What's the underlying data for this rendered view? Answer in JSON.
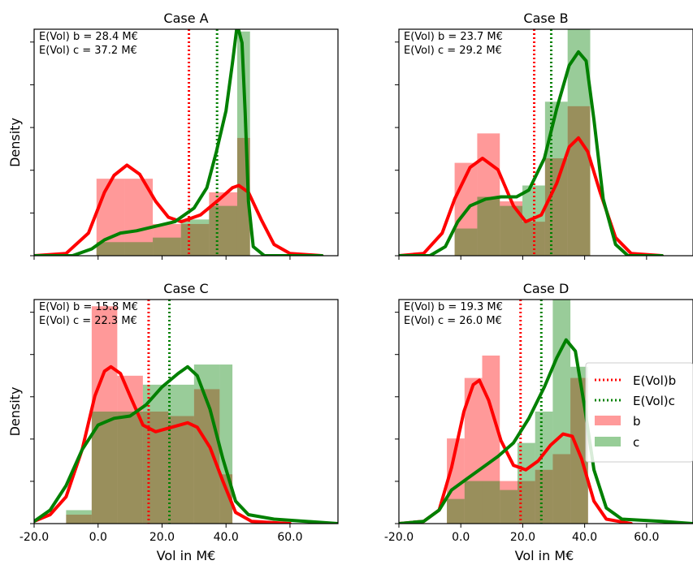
{
  "colors": {
    "b": "#ff0000",
    "c": "#008000",
    "b_fill": "#ff9a9a",
    "c_fill": "#97cd97",
    "overlap": "#998a4e"
  },
  "legend": {
    "placement": "center-right (panel D)",
    "items": [
      {
        "label": "E(Vol)b",
        "style": "dotted-line",
        "color": "#ff0000"
      },
      {
        "label": "E(Vol)c",
        "style": "dotted-line",
        "color": "#008000"
      },
      {
        "label": "b",
        "style": "patch",
        "color": "#ff9a9a"
      },
      {
        "label": "c",
        "style": "patch",
        "color": "#97cd97"
      }
    ]
  },
  "chart_data": [
    {
      "panel": "A",
      "type": "histogram+kde",
      "title": "Case A",
      "ylabel": "Density",
      "xlabel": "",
      "xlim": [
        -20,
        75
      ],
      "ylim": [
        0,
        1.0
      ],
      "xticks": [
        -20,
        0,
        20,
        40,
        60
      ],
      "xtick_labels": [],
      "annotations": [
        "E(Vol) b = 28.4 M€",
        "E(Vol) c = 37.2 M€"
      ],
      "expected": {
        "b": 28.4,
        "c": 37.2
      },
      "bins": [
        -0.5,
        8.3,
        17.1,
        25.9,
        34.7,
        43.5,
        47.5
      ],
      "hist_b": [
        0.34,
        0.34,
        0.14,
        0.14,
        0.28,
        0.52
      ],
      "hist_c": [
        0.06,
        0.06,
        0.08,
        0.16,
        0.22,
        0.99
      ],
      "kde_b": [
        [
          -20,
          0
        ],
        [
          -10,
          0.01
        ],
        [
          -3,
          0.1
        ],
        [
          2,
          0.28
        ],
        [
          5,
          0.355
        ],
        [
          9,
          0.4
        ],
        [
          13,
          0.36
        ],
        [
          18,
          0.24
        ],
        [
          22,
          0.17
        ],
        [
          26,
          0.15
        ],
        [
          32,
          0.18
        ],
        [
          38,
          0.25
        ],
        [
          42,
          0.3
        ],
        [
          44,
          0.31
        ],
        [
          47,
          0.28
        ],
        [
          51,
          0.16
        ],
        [
          55,
          0.05
        ],
        [
          60,
          0.01
        ],
        [
          70,
          0
        ]
      ],
      "kde_c": [
        [
          -20,
          0
        ],
        [
          -8,
          0
        ],
        [
          -2,
          0.03
        ],
        [
          2,
          0.07
        ],
        [
          7,
          0.1
        ],
        [
          12,
          0.11
        ],
        [
          18,
          0.13
        ],
        [
          24,
          0.15
        ],
        [
          30,
          0.21
        ],
        [
          34,
          0.3
        ],
        [
          37,
          0.46
        ],
        [
          40,
          0.64
        ],
        [
          42,
          0.85
        ],
        [
          43.5,
          1.02
        ],
        [
          45,
          0.94
        ],
        [
          46,
          0.63
        ],
        [
          47,
          0.24
        ],
        [
          48.5,
          0.04
        ],
        [
          52,
          0
        ],
        [
          70,
          0
        ]
      ]
    },
    {
      "panel": "B",
      "type": "histogram+kde",
      "title": "Case B",
      "ylabel": "",
      "xlabel": "",
      "xlim": [
        -20,
        75
      ],
      "ylim": [
        0,
        1.0
      ],
      "xticks": [
        -20,
        0,
        20,
        40,
        60
      ],
      "xtick_labels": [],
      "annotations": [
        "E(Vol) b = 23.7 M€",
        "E(Vol) c = 29.2 M€"
      ],
      "expected": {
        "b": 23.7,
        "c": 29.2
      },
      "bins": [
        -2,
        5.3,
        12.6,
        19.9,
        27.2,
        34.5,
        41.8
      ],
      "hist_b": [
        0.41,
        0.54,
        0.24,
        0.15,
        0.43,
        0.66
      ],
      "hist_c": [
        0.12,
        0.26,
        0.22,
        0.31,
        0.68,
        1.0
      ],
      "kde_b": [
        [
          -20,
          0
        ],
        [
          -12,
          0.01
        ],
        [
          -6,
          0.1
        ],
        [
          -2,
          0.25
        ],
        [
          3,
          0.39
        ],
        [
          7,
          0.43
        ],
        [
          12,
          0.38
        ],
        [
          17,
          0.22
        ],
        [
          21,
          0.15
        ],
        [
          26,
          0.18
        ],
        [
          31,
          0.32
        ],
        [
          35,
          0.48
        ],
        [
          38,
          0.52
        ],
        [
          41,
          0.46
        ],
        [
          45,
          0.28
        ],
        [
          50,
          0.08
        ],
        [
          55,
          0.01
        ],
        [
          65,
          0
        ]
      ],
      "kde_c": [
        [
          -20,
          0
        ],
        [
          -10,
          0
        ],
        [
          -5,
          0.04
        ],
        [
          -1,
          0.15
        ],
        [
          3,
          0.22
        ],
        [
          8,
          0.25
        ],
        [
          13,
          0.26
        ],
        [
          18,
          0.26
        ],
        [
          22,
          0.29
        ],
        [
          27,
          0.43
        ],
        [
          31,
          0.65
        ],
        [
          35,
          0.84
        ],
        [
          38,
          0.9
        ],
        [
          40.5,
          0.86
        ],
        [
          43,
          0.6
        ],
        [
          46,
          0.25
        ],
        [
          50,
          0.05
        ],
        [
          54,
          0
        ],
        [
          65,
          0
        ]
      ]
    },
    {
      "panel": "C",
      "type": "histogram+kde",
      "title": "Case C",
      "ylabel": "Density",
      "xlabel": "",
      "xlim": [
        -20,
        75
      ],
      "ylim": [
        0,
        1.0
      ],
      "xticks": [
        -20,
        0,
        20,
        40,
        60
      ],
      "xtick_labels": [],
      "annotations": [
        "E(Vol) b = 15.8 M€",
        "E(Vol) c = 22.3 M€"
      ],
      "expected": {
        "b": 15.8,
        "c": 22.3
      },
      "bins": [
        -10,
        -2,
        6,
        14,
        22,
        30,
        38,
        42
      ],
      "hist_b": [
        0.04,
        0.97,
        0.66,
        0.5,
        0.48,
        0.6,
        0.22
      ],
      "hist_c": [
        0.06,
        0.5,
        0.5,
        0.62,
        0.62,
        0.71,
        0.71
      ],
      "kde_b": [
        [
          -20,
          0.01
        ],
        [
          -15,
          0.04
        ],
        [
          -10,
          0.12
        ],
        [
          -5,
          0.33
        ],
        [
          -1,
          0.57
        ],
        [
          2,
          0.68
        ],
        [
          4,
          0.7
        ],
        [
          7,
          0.67
        ],
        [
          10,
          0.57
        ],
        [
          14,
          0.44
        ],
        [
          18,
          0.41
        ],
        [
          23,
          0.43
        ],
        [
          28,
          0.45
        ],
        [
          31,
          0.43
        ],
        [
          35,
          0.34
        ],
        [
          39,
          0.19
        ],
        [
          43,
          0.05
        ],
        [
          48,
          0.01
        ],
        [
          60,
          0
        ]
      ],
      "kde_c": [
        [
          -20,
          0.01
        ],
        [
          -15,
          0.06
        ],
        [
          -10,
          0.17
        ],
        [
          -5,
          0.33
        ],
        [
          0,
          0.44
        ],
        [
          5,
          0.47
        ],
        [
          10,
          0.48
        ],
        [
          15,
          0.53
        ],
        [
          20,
          0.61
        ],
        [
          25,
          0.67
        ],
        [
          28,
          0.7
        ],
        [
          31,
          0.66
        ],
        [
          35,
          0.51
        ],
        [
          39,
          0.29
        ],
        [
          43,
          0.1
        ],
        [
          47,
          0.04
        ],
        [
          55,
          0.02
        ],
        [
          65,
          0.01
        ],
        [
          75,
          0
        ]
      ]
    },
    {
      "panel": "D",
      "type": "histogram+kde",
      "title": "Case D",
      "ylabel": "",
      "xlabel": "",
      "xlim": [
        -20,
        75
      ],
      "ylim": [
        0,
        1.0
      ],
      "xticks": [
        -20,
        0,
        20,
        40,
        60
      ],
      "xtick_labels": [],
      "annotations": [
        "E(Vol) b = 19.3 M€",
        "E(Vol) c = 26.0 M€"
      ],
      "expected": {
        "b": 19.3,
        "c": 26.0
      },
      "bins": [
        -4.5,
        1.2,
        6.9,
        12.6,
        18.3,
        24,
        29.7,
        35.4,
        41.1
      ],
      "hist_b": [
        0.38,
        0.65,
        0.75,
        0.19,
        0.19,
        0.24,
        0.31,
        0.65
      ],
      "hist_c": [
        0.11,
        0.19,
        0.19,
        0.15,
        0.36,
        0.5,
        1.0,
        0.7
      ],
      "kde_b": [
        [
          -20,
          0
        ],
        [
          -12,
          0.01
        ],
        [
          -7,
          0.06
        ],
        [
          -3,
          0.25
        ],
        [
          1,
          0.5
        ],
        [
          4,
          0.62
        ],
        [
          6,
          0.64
        ],
        [
          9,
          0.55
        ],
        [
          13,
          0.37
        ],
        [
          17,
          0.26
        ],
        [
          21,
          0.24
        ],
        [
          25,
          0.28
        ],
        [
          29,
          0.35
        ],
        [
          33,
          0.4
        ],
        [
          36,
          0.39
        ],
        [
          39,
          0.29
        ],
        [
          43,
          0.1
        ],
        [
          47,
          0.02
        ],
        [
          55,
          0
        ]
      ],
      "kde_c": [
        [
          -20,
          0
        ],
        [
          -12,
          0.01
        ],
        [
          -7,
          0.06
        ],
        [
          -3,
          0.15
        ],
        [
          2,
          0.2
        ],
        [
          7,
          0.25
        ],
        [
          12,
          0.3
        ],
        [
          17,
          0.36
        ],
        [
          22,
          0.47
        ],
        [
          27,
          0.61
        ],
        [
          31,
          0.74
        ],
        [
          34,
          0.82
        ],
        [
          37,
          0.77
        ],
        [
          40,
          0.52
        ],
        [
          43,
          0.24
        ],
        [
          47,
          0.07
        ],
        [
          52,
          0.02
        ],
        [
          65,
          0.01
        ],
        [
          75,
          0
        ]
      ]
    }
  ],
  "xlabel_bottom": "Vol in M€",
  "xtick_labels_bottom": [
    "-20.0",
    "0.0",
    "20.0",
    "40.0",
    "60.0"
  ]
}
